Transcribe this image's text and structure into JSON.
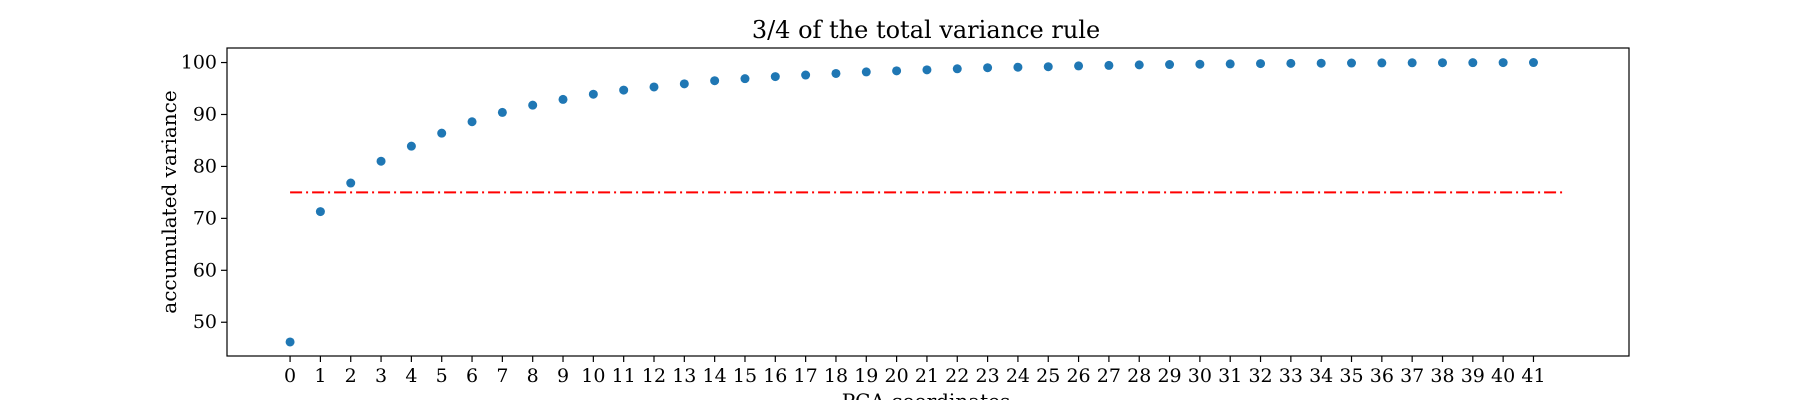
{
  "chart_data": {
    "type": "scatter",
    "title": "3/4 of the total variance rule",
    "xlabel": "PCA coordinates",
    "ylabel": "accumulated variance",
    "x": [
      0,
      1,
      2,
      3,
      4,
      5,
      6,
      7,
      8,
      9,
      10,
      11,
      12,
      13,
      14,
      15,
      16,
      17,
      18,
      19,
      20,
      21,
      22,
      23,
      24,
      25,
      26,
      27,
      28,
      29,
      30,
      31,
      32,
      33,
      34,
      35,
      36,
      37,
      38,
      39,
      40,
      41
    ],
    "values": [
      46.2,
      71.3,
      76.8,
      81.0,
      83.9,
      86.4,
      88.6,
      90.4,
      91.8,
      92.9,
      93.9,
      94.7,
      95.3,
      95.9,
      96.5,
      96.9,
      97.3,
      97.6,
      97.9,
      98.2,
      98.4,
      98.6,
      98.8,
      99.0,
      99.1,
      99.2,
      99.35,
      99.45,
      99.55,
      99.62,
      99.68,
      99.74,
      99.8,
      99.84,
      99.87,
      99.9,
      99.93,
      99.95,
      99.97,
      99.98,
      99.99,
      100.0
    ],
    "x_ticks": [
      "0",
      "1",
      "2",
      "3",
      "4",
      "5",
      "6",
      "7",
      "8",
      "9",
      "10",
      "11",
      "12",
      "13",
      "14",
      "15",
      "16",
      "17",
      "18",
      "19",
      "20",
      "21",
      "22",
      "23",
      "24",
      "25",
      "26",
      "27",
      "28",
      "29",
      "30",
      "31",
      "32",
      "33",
      "34",
      "35",
      "36",
      "37",
      "38",
      "39",
      "40",
      "41"
    ],
    "y_ticks": [
      50,
      60,
      70,
      80,
      90,
      100
    ],
    "y_tick_labels": [
      "50",
      "60",
      "70",
      "80",
      "90",
      "100"
    ],
    "xlim": [
      -2.08,
      44.15
    ],
    "ylim": [
      43.5,
      102.8
    ],
    "threshold": {
      "value": 75,
      "x_start": 0,
      "x_end": 42,
      "color": "#ff0000",
      "style": "dash-dot"
    },
    "marker_color": "#1f77b4",
    "grid": false,
    "legend": "none"
  }
}
